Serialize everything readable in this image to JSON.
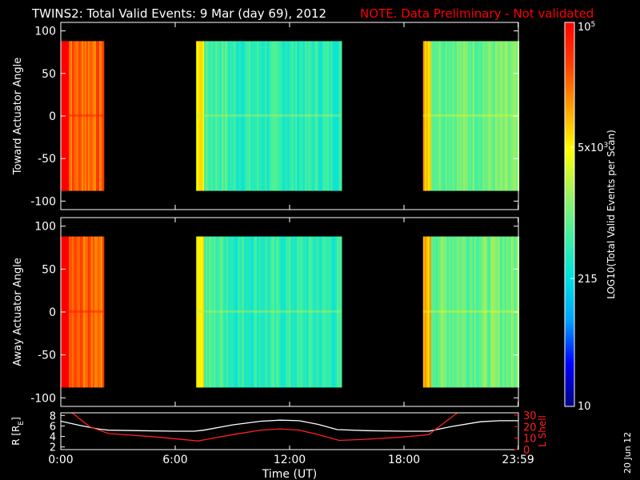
{
  "header": {
    "title": "TWINS2: Total Valid Events:  9 Mar (day  69), 2012",
    "note": "NOTE. Data Preliminary - Not validated",
    "note_color": "#ff0000"
  },
  "footer": {
    "date_stamp": "20 Jun 12"
  },
  "colorbar": {
    "label": "LOG10(Total Valid Events per Scan)",
    "ticks": [
      "10",
      "215",
      "5x10^3",
      "10^5"
    ],
    "tick_values": [
      10,
      215,
      5000,
      100000
    ],
    "scale": "log",
    "colors": [
      "#000080",
      "#0000ff",
      "#00a0ff",
      "#00e0e0",
      "#40f0a0",
      "#a0f060",
      "#ffff00",
      "#ffa000",
      "#ff4000",
      "#ff0000"
    ]
  },
  "chart_data": [
    {
      "type": "heatmap",
      "panel": "toward",
      "ylabel": "Toward Actuator Angle",
      "ylim": [
        -110,
        110
      ],
      "yticks": [
        "100",
        "50",
        "0",
        "-50",
        "-100"
      ],
      "ytick_values": [
        100,
        50,
        0,
        -50,
        -100
      ],
      "xlim": [
        0,
        24
      ],
      "xticks": [
        0,
        6,
        12,
        18,
        23.983
      ],
      "angle_range": [
        -88,
        88
      ],
      "segments": [
        {
          "start": 0.0,
          "end": 2.25,
          "level": 0.85
        },
        {
          "start": 7.1,
          "end": 14.7,
          "level": 0.45
        },
        {
          "start": 19.0,
          "end": 24.0,
          "level": 0.5
        }
      ]
    },
    {
      "type": "heatmap",
      "panel": "away",
      "ylabel": "Away Actuator Angle",
      "ylim": [
        -110,
        110
      ],
      "yticks": [
        "100",
        "50",
        "0",
        "-50",
        "-100"
      ],
      "ytick_values": [
        100,
        50,
        0,
        -50,
        -100
      ],
      "xlim": [
        0,
        24
      ],
      "xticks": [
        0,
        6,
        12,
        18,
        23.983
      ],
      "angle_range": [
        -88,
        88
      ],
      "segments": [
        {
          "start": 0.0,
          "end": 2.25,
          "level": 0.85
        },
        {
          "start": 7.1,
          "end": 14.7,
          "level": 0.45
        },
        {
          "start": 19.0,
          "end": 24.0,
          "level": 0.5
        }
      ]
    },
    {
      "type": "line",
      "panel": "orbit",
      "xlabel": "Time (UT)",
      "xticks": [
        "0:00",
        "6:00",
        "12:00",
        "18:00",
        "23:59"
      ],
      "xtick_values": [
        0,
        6,
        12,
        18,
        23.983
      ],
      "xlim": [
        0,
        24
      ],
      "ylabel_left": "R [RE]",
      "ylabel_left_base": "R [R",
      "ylabel_left_sub": "E",
      "ylabel_left_end": "]",
      "ylim_left": [
        1.5,
        8.5
      ],
      "yticks_left": [
        "8",
        "6",
        "4",
        "2"
      ],
      "ytick_values_left": [
        8,
        6,
        4,
        2
      ],
      "ylabel_right": "L Shell",
      "ylim_right": [
        0,
        32
      ],
      "yticks_right": [
        "30",
        "20",
        "10",
        "0"
      ],
      "ytick_values_right": [
        30,
        20,
        10,
        0
      ],
      "series": [
        {
          "axis": "left",
          "color": "#ffffff",
          "x": [
            0,
            1,
            2,
            2.5,
            4,
            6,
            7,
            7.5,
            9,
            10.5,
            11.5,
            12.5,
            13.5,
            14.5,
            16,
            18,
            19.3,
            20.5,
            22,
            23,
            23.983
          ],
          "y": [
            6.9,
            6.1,
            5.4,
            5.2,
            5.1,
            5.0,
            5.0,
            5.2,
            6.2,
            6.9,
            7.1,
            7.0,
            6.3,
            5.3,
            5.1,
            5.0,
            5.0,
            5.9,
            6.8,
            7.0,
            7.0
          ]
        },
        {
          "axis": "right",
          "color": "#ff2020",
          "x": [
            0.6,
            1.5,
            2.5,
            5,
            7.2,
            9,
            10.5,
            11.5,
            12.5,
            13.5,
            14.6,
            16,
            18,
            19.3,
            20,
            20.8
          ],
          "y": [
            32,
            20,
            14,
            11,
            7.5,
            13,
            17,
            18,
            17,
            13,
            8,
            9,
            11,
            13,
            22,
            32
          ]
        }
      ]
    }
  ]
}
